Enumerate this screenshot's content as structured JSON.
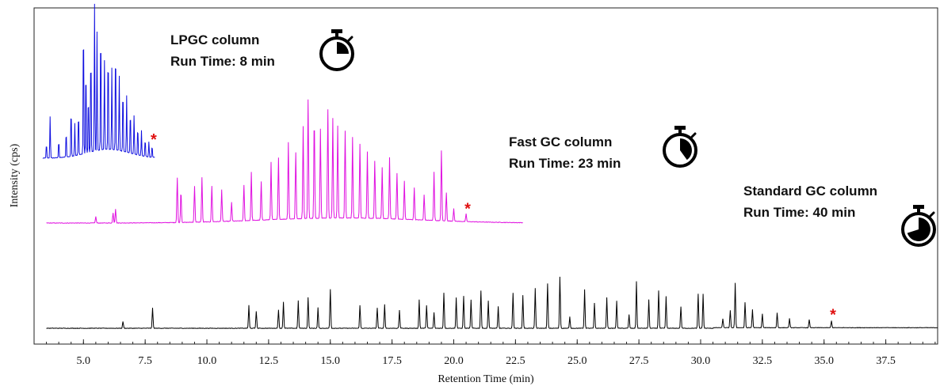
{
  "chart_data": {
    "type": "line",
    "xlabel": "Retention Time (min)",
    "ylabel": "Intensity (cps)",
    "xlim": [
      3.0,
      39.6
    ],
    "xticks": [
      5.0,
      7.5,
      10.0,
      12.5,
      15.0,
      17.5,
      20.0,
      22.5,
      25.0,
      27.5,
      30.0,
      32.5,
      35.0,
      37.5
    ],
    "xtick_labels": [
      "5.0",
      "7.5",
      "10.0",
      "12.5",
      "15.0",
      "17.5",
      "20.0",
      "22.5",
      "25.0",
      "27.5",
      "30.0",
      "32.5",
      "35.0",
      "37.5"
    ],
    "grid": false,
    "series": [
      {
        "key": "lpgc",
        "color": "#1010e0",
        "x_range": [
          3.35,
          7.9
        ],
        "baseline": 0.78,
        "peaks": [
          [
            3.5,
            0.1
          ],
          [
            3.65,
            0.28
          ],
          [
            4.0,
            0.12
          ],
          [
            4.3,
            0.18
          ],
          [
            4.5,
            0.34
          ],
          [
            4.65,
            0.22
          ],
          [
            4.8,
            0.3
          ],
          [
            5.0,
            0.95
          ],
          [
            5.1,
            0.62
          ],
          [
            5.2,
            0.41
          ],
          [
            5.3,
            0.72
          ],
          [
            5.45,
            0.99
          ],
          [
            5.55,
            0.8
          ],
          [
            5.7,
            0.88
          ],
          [
            5.85,
            0.6
          ],
          [
            6.0,
            0.7
          ],
          [
            6.15,
            0.55
          ],
          [
            6.3,
            0.74
          ],
          [
            6.45,
            0.5
          ],
          [
            6.6,
            0.45
          ],
          [
            6.75,
            0.38
          ],
          [
            6.9,
            0.3
          ],
          [
            7.05,
            0.26
          ],
          [
            7.2,
            0.2
          ],
          [
            7.35,
            0.17
          ],
          [
            7.5,
            0.12
          ],
          [
            7.65,
            0.1
          ],
          [
            7.78,
            0.08
          ]
        ],
        "end_marker": "*",
        "end_marker_color": "#e01010"
      },
      {
        "key": "fast",
        "color": "#e010e0",
        "x_range": [
          3.5,
          22.8
        ],
        "baseline": 0.33,
        "peaks": [
          [
            5.5,
            0.05
          ],
          [
            6.2,
            0.08
          ],
          [
            6.3,
            0.11
          ],
          [
            8.8,
            0.35
          ],
          [
            8.95,
            0.25
          ],
          [
            9.5,
            0.28
          ],
          [
            9.8,
            0.35
          ],
          [
            10.2,
            0.28
          ],
          [
            10.6,
            0.25
          ],
          [
            11.0,
            0.15
          ],
          [
            11.5,
            0.28
          ],
          [
            11.8,
            0.38
          ],
          [
            12.2,
            0.3
          ],
          [
            12.6,
            0.45
          ],
          [
            12.9,
            0.48
          ],
          [
            13.3,
            0.6
          ],
          [
            13.6,
            0.52
          ],
          [
            13.9,
            0.72
          ],
          [
            14.1,
            0.93
          ],
          [
            14.35,
            0.8
          ],
          [
            14.6,
            0.7
          ],
          [
            14.9,
            0.85
          ],
          [
            15.1,
            0.78
          ],
          [
            15.3,
            0.72
          ],
          [
            15.6,
            0.68
          ],
          [
            15.9,
            0.63
          ],
          [
            16.2,
            0.58
          ],
          [
            16.5,
            0.52
          ],
          [
            16.8,
            0.45
          ],
          [
            17.1,
            0.4
          ],
          [
            17.4,
            0.48
          ],
          [
            17.7,
            0.36
          ],
          [
            18.0,
            0.3
          ],
          [
            18.4,
            0.25
          ],
          [
            18.8,
            0.2
          ],
          [
            19.2,
            0.38
          ],
          [
            19.5,
            0.55
          ],
          [
            19.7,
            0.22
          ],
          [
            20.0,
            0.1
          ],
          [
            20.5,
            0.06
          ]
        ],
        "end_marker": "*",
        "end_marker_color": "#e01010"
      },
      {
        "key": "standard",
        "color": "#000000",
        "x_range": [
          3.5,
          39.6
        ],
        "baseline": 0.02,
        "peaks": [
          [
            6.6,
            0.06
          ],
          [
            7.8,
            0.18
          ],
          [
            11.7,
            0.2
          ],
          [
            12.0,
            0.15
          ],
          [
            12.9,
            0.16
          ],
          [
            13.1,
            0.23
          ],
          [
            13.7,
            0.24
          ],
          [
            14.1,
            0.27
          ],
          [
            14.5,
            0.18
          ],
          [
            15.0,
            0.34
          ],
          [
            16.2,
            0.2
          ],
          [
            16.9,
            0.18
          ],
          [
            17.2,
            0.21
          ],
          [
            17.8,
            0.16
          ],
          [
            18.6,
            0.25
          ],
          [
            18.9,
            0.2
          ],
          [
            19.2,
            0.14
          ],
          [
            19.6,
            0.31
          ],
          [
            20.1,
            0.27
          ],
          [
            20.4,
            0.28
          ],
          [
            20.7,
            0.25
          ],
          [
            21.1,
            0.33
          ],
          [
            21.4,
            0.24
          ],
          [
            21.8,
            0.19
          ],
          [
            22.4,
            0.31
          ],
          [
            22.8,
            0.29
          ],
          [
            23.3,
            0.35
          ],
          [
            23.8,
            0.39
          ],
          [
            24.3,
            0.45
          ],
          [
            24.7,
            0.1
          ],
          [
            25.3,
            0.34
          ],
          [
            25.7,
            0.22
          ],
          [
            26.2,
            0.27
          ],
          [
            26.6,
            0.24
          ],
          [
            27.1,
            0.12
          ],
          [
            27.4,
            0.41
          ],
          [
            27.9,
            0.25
          ],
          [
            28.3,
            0.33
          ],
          [
            28.6,
            0.28
          ],
          [
            29.2,
            0.19
          ],
          [
            29.9,
            0.3
          ],
          [
            30.1,
            0.3
          ],
          [
            30.9,
            0.08
          ],
          [
            31.2,
            0.15
          ],
          [
            31.4,
            0.39
          ],
          [
            31.8,
            0.22
          ],
          [
            32.1,
            0.16
          ],
          [
            32.5,
            0.12
          ],
          [
            33.1,
            0.13
          ],
          [
            33.6,
            0.08
          ],
          [
            34.4,
            0.07
          ],
          [
            35.3,
            0.06
          ]
        ],
        "end_marker": "*",
        "end_marker_color": "#e01010"
      }
    ],
    "annotations": [
      {
        "line1": "LPGC column",
        "line2": "Run Time: 8 min",
        "icon": "stopwatch-icon",
        "fill_fraction": 0.25
      },
      {
        "line1": "Fast GC column",
        "line2": "Run Time: 23 min",
        "icon": "stopwatch-icon",
        "fill_fraction": 0.4
      },
      {
        "line1": "Standard GC column",
        "line2": "Run Time: 40 min",
        "icon": "stopwatch-icon",
        "fill_fraction": 0.7
      }
    ]
  }
}
